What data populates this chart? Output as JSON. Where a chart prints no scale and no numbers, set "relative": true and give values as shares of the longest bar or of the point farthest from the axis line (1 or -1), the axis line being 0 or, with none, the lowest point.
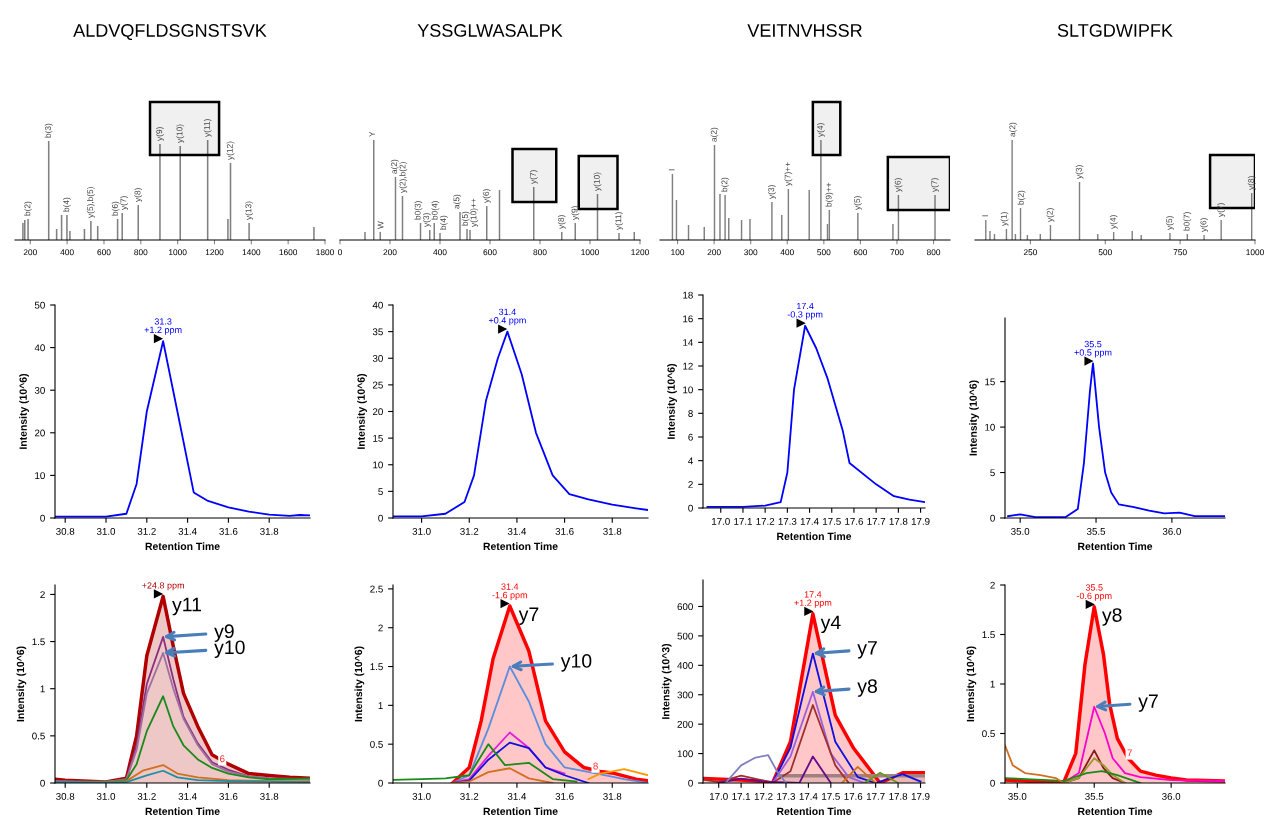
{
  "chart_data": [
    {
      "type": "bar",
      "title": "ALDVQFLDSGNSTSVK",
      "relative": true,
      "color": "#808080",
      "xlim": [
        117,
        1800
      ],
      "xticks": [
        200,
        400,
        600,
        800,
        1000,
        1200,
        1400,
        1600,
        1800
      ],
      "x": [
        160,
        170,
        188,
        300,
        343,
        370,
        399,
        415,
        494,
        529,
        566,
        674,
        699,
        786,
        904,
        1014,
        1163,
        1273,
        1287,
        1388,
        1740
      ],
      "values": [
        0.17,
        0.2,
        0.21,
        0.99,
        0.11,
        0.25,
        0.25,
        0.09,
        0.11,
        0.19,
        0.14,
        0.21,
        0.27,
        0.35,
        0.96,
        0.94,
        1.0,
        0.21,
        0.77,
        0.17,
        0.13
      ],
      "annotations": [
        {
          "text": "b(2)",
          "x": 188,
          "y": 0.21
        },
        {
          "text": "b(3)",
          "x": 300,
          "y": 0.99
        },
        {
          "text": "b(4)",
          "x": 399,
          "y": 0.25
        },
        {
          "text": "y(5),b(5)",
          "x": 529,
          "y": 0.19
        },
        {
          "text": "b(6)",
          "x": 674,
          "y": 0.21
        },
        {
          "text": "y(7)",
          "x": 699,
          "y": 0.27
        },
        {
          "text": "y(8)",
          "x": 786,
          "y": 0.35
        },
        {
          "text": "y(9)",
          "x": 904,
          "y": 0.96
        },
        {
          "text": "y(10)",
          "x": 1014,
          "y": 0.94
        },
        {
          "text": "y(11)",
          "x": 1163,
          "y": 1.0
        },
        {
          "text": "y(12)",
          "x": 1287,
          "y": 0.77
        },
        {
          "text": "y(13)",
          "x": 1388,
          "y": 0.17
        }
      ],
      "bands": [
        {
          "axis": "x",
          "from": 850,
          "to": 1225,
          "color": "#000000"
        }
      ]
    },
    {
      "type": "bar",
      "title": "YSSGLWASALPK",
      "relative": true,
      "color": "#808080",
      "xlim": [
        0,
        1200
      ],
      "xticks": [
        0,
        200,
        400,
        600,
        800,
        1000,
        1200
      ],
      "x": [
        100,
        135,
        161,
        222,
        250,
        322,
        359,
        377,
        400,
        480,
        508,
        520,
        587,
        638,
        775,
        887,
        941,
        1030,
        1116,
        1177
      ],
      "values": [
        0.08,
        1.0,
        0.08,
        0.63,
        0.44,
        0.17,
        0.1,
        0.17,
        0.07,
        0.28,
        0.11,
        0.1,
        0.34,
        0.5,
        0.53,
        0.08,
        0.17,
        0.46,
        0.07,
        0.08
      ],
      "annotations": [
        {
          "text": "Y",
          "x": 135,
          "y": 1.0
        },
        {
          "text": "W",
          "x": 161,
          "y": 0.08
        },
        {
          "text": "a(2)",
          "x": 222,
          "y": 0.63
        },
        {
          "text": "y(2),b(2)",
          "x": 250,
          "y": 0.44
        },
        {
          "text": "b0(3)",
          "x": 322,
          "y": 0.17
        },
        {
          "text": "y(3)",
          "x": 359,
          "y": 0.1
        },
        {
          "text": "b0(4)",
          "x": 377,
          "y": 0.17
        },
        {
          "text": "b(4)",
          "x": 400,
          "y": 0.07
        },
        {
          "text": "a(5)",
          "x": 480,
          "y": 0.28
        },
        {
          "text": "b(5)",
          "x": 508,
          "y": 0.11
        },
        {
          "text": "y(10)++",
          "x": 520,
          "y": 0.1
        },
        {
          "text": "y(6)",
          "x": 587,
          "y": 0.34
        },
        {
          "text": "y(7)",
          "x": 775,
          "y": 0.53
        },
        {
          "text": "y(8)",
          "x": 887,
          "y": 0.08
        },
        {
          "text": "y(9)",
          "x": 941,
          "y": 0.17
        },
        {
          "text": "y(10)",
          "x": 1030,
          "y": 0.46
        },
        {
          "text": "y(11)",
          "x": 1116,
          "y": 0.07
        }
      ],
      "bands": [
        {
          "axis": "x",
          "from": 690,
          "to": 865,
          "color": "#000000"
        },
        {
          "axis": "x",
          "from": 955,
          "to": 1110,
          "color": "#000000"
        }
      ]
    },
    {
      "type": "bar",
      "title": "VEITNVHSSR",
      "relative": true,
      "color": "#808080",
      "xlim": [
        52,
        845
      ],
      "xticks": [
        100,
        200,
        300,
        400,
        500,
        600,
        700,
        800
      ],
      "x": [
        86,
        97,
        130,
        173,
        201,
        216,
        230,
        240,
        275,
        298,
        358,
        385,
        403,
        460,
        492,
        510,
        515,
        593,
        689,
        704,
        804
      ],
      "values": [
        0.66,
        0.4,
        0.15,
        0.13,
        0.95,
        0.46,
        0.45,
        0.22,
        0.2,
        0.21,
        0.38,
        0.25,
        0.51,
        0.5,
        1.0,
        0.16,
        0.3,
        0.27,
        0.16,
        0.45,
        0.45
      ],
      "annotations": [
        {
          "text": "I",
          "x": 86,
          "y": 0.66
        },
        {
          "text": "a(2)",
          "x": 201,
          "y": 0.95
        },
        {
          "text": "b(2)",
          "x": 230,
          "y": 0.45
        },
        {
          "text": "y(3)",
          "x": 358,
          "y": 0.38
        },
        {
          "text": "y(7)++",
          "x": 403,
          "y": 0.51
        },
        {
          "text": "y(4)",
          "x": 492,
          "y": 1.0
        },
        {
          "text": "b(9)++",
          "x": 515,
          "y": 0.3
        },
        {
          "text": "y(5)",
          "x": 593,
          "y": 0.27
        },
        {
          "text": "y(6)",
          "x": 704,
          "y": 0.45
        },
        {
          "text": "y(7)",
          "x": 804,
          "y": 0.45
        }
      ],
      "bands": [
        {
          "axis": "x",
          "from": 470,
          "to": 545,
          "color": "#000000"
        },
        {
          "axis": "x",
          "from": 675,
          "to": 845,
          "color": "#000000"
        }
      ]
    },
    {
      "type": "bar",
      "title": "SLTGDWIPFK",
      "relative": true,
      "color": "#808080",
      "xlim": [
        65,
        1000
      ],
      "xticks": [
        250,
        500,
        750,
        1000
      ],
      "x": [
        101,
        115,
        130,
        170,
        189,
        200,
        217,
        240,
        283,
        317,
        414,
        475,
        528,
        590,
        620,
        716,
        774,
        830,
        887,
        989
      ],
      "values": [
        0.2,
        0.09,
        0.06,
        0.11,
        1.0,
        0.06,
        0.32,
        0.05,
        0.06,
        0.15,
        0.58,
        0.06,
        0.08,
        0.09,
        0.05,
        0.07,
        0.06,
        0.05,
        0.2,
        0.47
      ],
      "annotations": [
        {
          "text": "I",
          "x": 101,
          "y": 0.2
        },
        {
          "text": "y(1)",
          "x": 170,
          "y": 0.11
        },
        {
          "text": "a(2)",
          "x": 189,
          "y": 1.0
        },
        {
          "text": "b(2)",
          "x": 217,
          "y": 0.32
        },
        {
          "text": "y(2)",
          "x": 317,
          "y": 0.15
        },
        {
          "text": "y(3)",
          "x": 414,
          "y": 0.58
        },
        {
          "text": "y(4)",
          "x": 528,
          "y": 0.08
        },
        {
          "text": "y(5)",
          "x": 716,
          "y": 0.07
        },
        {
          "text": "b0(7)",
          "x": 774,
          "y": 0.06
        },
        {
          "text": "y(6)",
          "x": 830,
          "y": 0.05
        },
        {
          "text": "y(7)",
          "x": 887,
          "y": 0.2
        },
        {
          "text": "y(8)",
          "x": 989,
          "y": 0.47
        }
      ],
      "bands": [
        {
          "axis": "x",
          "from": 850,
          "to": 1000,
          "color": "#000000"
        }
      ]
    },
    {
      "type": "line",
      "xlabel": "Retention Time",
      "ylabel": "Intensity (10^6)",
      "xlim": [
        30.75,
        32.0
      ],
      "xticks": [
        30.8,
        {
          "value": 31,
          "label": "31.0"
        },
        31.2,
        31.4,
        31.6,
        31.8
      ],
      "ylim": [
        0,
        50
      ],
      "yticks": [
        0,
        10,
        20,
        30,
        40,
        50
      ],
      "series": [
        {
          "color": "#0000ff",
          "x": [
            30.75,
            30.9,
            31.0,
            31.1,
            31.15,
            31.2,
            31.28,
            31.35,
            31.43,
            31.5,
            31.6,
            31.7,
            31.8,
            31.9,
            31.95,
            32.0
          ],
          "values": [
            0.3,
            0.3,
            0.3,
            1,
            8,
            25,
            41.5,
            25,
            6,
            4,
            2.5,
            1.5,
            0.8,
            0.5,
            0.7,
            0.6
          ]
        }
      ],
      "annotations": [
        {
          "text": "31.3\n+1.2 ppm",
          "x": 31.28,
          "y": 41.5
        }
      ]
    },
    {
      "type": "line",
      "xlabel": "Retention Time",
      "ylabel": "Intensity (10^6)",
      "xlim": [
        30.88,
        31.95
      ],
      "xticks": [
        {
          "value": 31,
          "label": "31.0"
        },
        31.2,
        31.4,
        31.6,
        31.8
      ],
      "ylim": [
        0,
        40
      ],
      "yticks": [
        0,
        5,
        10,
        15,
        20,
        25,
        30,
        35,
        40
      ],
      "series": [
        {
          "color": "#0000ff",
          "x": [
            30.88,
            31.0,
            31.1,
            31.18,
            31.22,
            31.27,
            31.32,
            31.36,
            31.42,
            31.48,
            31.55,
            31.62,
            31.7,
            31.8,
            31.9,
            31.95
          ],
          "values": [
            0.3,
            0.3,
            0.8,
            3,
            8,
            22,
            30,
            35,
            27,
            16,
            8,
            4.5,
            3.5,
            2.5,
            1.8,
            1.5
          ]
        }
      ],
      "annotations": [
        {
          "text": "31.4\n+0.4 ppm",
          "x": 31.36,
          "y": 35
        }
      ]
    },
    {
      "type": "line",
      "xlabel": "Retention Time",
      "ylabel": "Intensity (10^6)",
      "xlim": [
        16.92,
        17.92
      ],
      "xticks": [
        {
          "value": 17,
          "label": "17.0"
        },
        17.1,
        17.2,
        17.3,
        17.4,
        17.5,
        17.6,
        17.7,
        17.8,
        17.9
      ],
      "ylim": [
        0,
        18
      ],
      "yticks": [
        0,
        2,
        4,
        6,
        8,
        10,
        12,
        14,
        16,
        18
      ],
      "series": [
        {
          "color": "#0000ff",
          "x": [
            16.94,
            17.1,
            17.2,
            17.27,
            17.3,
            17.33,
            17.38,
            17.43,
            17.48,
            17.55,
            17.58,
            17.7,
            17.78,
            17.85,
            17.92
          ],
          "values": [
            0.1,
            0.1,
            0.2,
            0.5,
            3,
            10,
            15.4,
            13.5,
            11,
            6.5,
            3.8,
            2,
            1,
            0.7,
            0.5
          ]
        }
      ],
      "annotations": [
        {
          "text": "17.4\n-0.3 ppm",
          "x": 17.38,
          "y": 15.4
        }
      ]
    },
    {
      "type": "line",
      "xlabel": "Retention Time",
      "ylabel": "Intensity (10^6)",
      "xlim": [
        34.9,
        36.35
      ],
      "xticks": [
        {
          "value": 35,
          "label": "35.0"
        },
        35.5,
        {
          "value": 36,
          "label": "36.0"
        }
      ],
      "ylim": [
        0,
        22
      ],
      "yticks": [
        0,
        5,
        10,
        15
      ],
      "series": [
        {
          "color": "#0000ff",
          "x": [
            34.92,
            35.0,
            35.1,
            35.3,
            35.38,
            35.42,
            35.46,
            35.48,
            35.52,
            35.56,
            35.6,
            35.65,
            35.75,
            35.85,
            35.95,
            36.05,
            36.15,
            36.35
          ],
          "values": [
            0.2,
            0.4,
            0.1,
            0.1,
            1,
            6,
            14,
            17,
            10,
            5,
            2.8,
            1.5,
            1.2,
            0.8,
            0.5,
            0.6,
            0.2,
            0.2
          ]
        }
      ],
      "annotations": [
        {
          "text": "35.5\n+0.5 ppm",
          "x": 35.48,
          "y": 17
        }
      ]
    },
    {
      "type": "line",
      "xlabel": "Retention Time",
      "ylabel": "Intensity (10^6)",
      "xlim": [
        30.75,
        32.0
      ],
      "xticks": [
        30.8,
        {
          "value": 31,
          "label": "31.0"
        },
        31.2,
        31.4,
        31.6,
        31.8
      ],
      "ylim": [
        0,
        2.1
      ],
      "yticks": [
        0,
        0.5,
        1,
        1.5,
        2
      ],
      "series": [
        {
          "type": "area",
          "name": "y11",
          "color": "#b00000",
          "x": [
            30.75,
            30.8,
            31.0,
            31.1,
            31.15,
            31.2,
            31.28,
            31.33,
            31.38,
            31.45,
            31.52,
            31.6,
            31.7,
            31.8,
            31.9,
            32.0
          ],
          "values": [
            0.04,
            0.03,
            0.01,
            0.05,
            0.5,
            1.35,
            1.98,
            1.45,
            0.95,
            0.6,
            0.3,
            0.2,
            0.1,
            0.08,
            0.06,
            0.05
          ]
        },
        {
          "name": "y9",
          "color": "#8b2f7f",
          "x": [
            30.75,
            31.0,
            31.1,
            31.15,
            31.2,
            31.28,
            31.33,
            31.38,
            31.45,
            31.52,
            31.6,
            31.7,
            31.8,
            32.0
          ],
          "values": [
            0.02,
            0.01,
            0.04,
            0.4,
            1.05,
            1.55,
            1.1,
            0.7,
            0.42,
            0.22,
            0.14,
            0.07,
            0.05,
            0.04
          ]
        },
        {
          "name": "y10",
          "color": "#a070a0",
          "x": [
            30.75,
            31.0,
            31.1,
            31.15,
            31.2,
            31.28,
            31.33,
            31.38,
            31.45,
            31.52,
            31.6,
            31.7,
            31.8,
            32.0
          ],
          "values": [
            0.02,
            0.01,
            0.04,
            0.35,
            0.95,
            1.38,
            1.0,
            0.68,
            0.4,
            0.2,
            0.12,
            0.07,
            0.05,
            0.04
          ]
        },
        {
          "color": "#1a8a1a",
          "x": [
            30.75,
            31.0,
            31.1,
            31.15,
            31.2,
            31.28,
            31.33,
            31.38,
            31.45,
            31.52,
            31.6,
            31.7,
            31.8,
            32.0
          ],
          "values": [
            0.01,
            0.01,
            0.03,
            0.2,
            0.55,
            0.92,
            0.6,
            0.4,
            0.25,
            0.16,
            0.1,
            0.06,
            0.04,
            0.05
          ]
        },
        {
          "color": "#d07020",
          "x": [
            30.75,
            31.1,
            31.18,
            31.28,
            31.35,
            31.45,
            31.6,
            31.8,
            32.0
          ],
          "values": [
            0.01,
            0.02,
            0.13,
            0.19,
            0.1,
            0.06,
            0.03,
            0.02,
            0.02
          ]
        },
        {
          "color": "#2090a0",
          "x": [
            30.75,
            31.1,
            31.2,
            31.28,
            31.35,
            31.45,
            31.6,
            32.0
          ],
          "values": [
            0.01,
            0.01,
            0.08,
            0.13,
            0.06,
            0.03,
            0.02,
            0.01
          ]
        }
      ],
      "annotations": [
        {
          "text": "+24.8 ppm",
          "x": 31.28,
          "y": 1.98
        },
        {
          "text": "6",
          "x": 31.57,
          "y": 0.2
        }
      ]
    },
    {
      "type": "line",
      "xlabel": "Retention Time",
      "ylabel": "Intensity (10^6)",
      "xlim": [
        30.88,
        31.95
      ],
      "xticks": [
        {
          "value": 31,
          "label": "31.0"
        },
        31.2,
        31.4,
        31.6,
        31.8
      ],
      "ylim": [
        0,
        2.55
      ],
      "yticks": [
        0,
        0.5,
        1,
        1.5,
        2,
        2.5
      ],
      "series": [
        {
          "type": "area",
          "name": "y7",
          "color": "#ff0000",
          "x": [
            31.13,
            31.2,
            31.25,
            31.3,
            31.37,
            31.45,
            31.52,
            31.6,
            31.68,
            31.75,
            31.8,
            31.9,
            31.95
          ],
          "values": [
            0,
            0.2,
            0.8,
            1.6,
            2.28,
            1.7,
            0.8,
            0.4,
            0.2,
            0.15,
            0.13,
            0.05,
            0.03
          ]
        },
        {
          "name": "y10",
          "color": "#5b8ee0",
          "x": [
            31.13,
            31.2,
            31.28,
            31.37,
            31.45,
            31.52,
            31.6,
            31.72,
            31.85,
            31.95
          ],
          "values": [
            0,
            0.1,
            0.7,
            1.5,
            1.05,
            0.5,
            0.2,
            0.13,
            0.05,
            0
          ]
        },
        {
          "color": "#e020e0",
          "x": [
            31.13,
            31.2,
            31.28,
            31.37,
            31.45,
            31.52,
            31.6
          ],
          "values": [
            0,
            0.05,
            0.35,
            0.65,
            0.45,
            0.2,
            0.12
          ]
        },
        {
          "color": "#1010e0",
          "x": [
            31.13,
            31.2,
            31.28,
            31.37,
            31.45,
            31.52,
            31.6,
            31.7
          ],
          "values": [
            0,
            0.03,
            0.3,
            0.52,
            0.45,
            0.2,
            0.1,
            0
          ]
        },
        {
          "color": "#1a8a1a",
          "x": [
            30.88,
            31.0,
            31.1,
            31.2,
            31.28,
            31.35,
            31.45,
            31.55,
            31.65
          ],
          "values": [
            0.04,
            0.05,
            0.06,
            0.1,
            0.5,
            0.23,
            0.26,
            0.05,
            0.02
          ]
        },
        {
          "color": "#d07020",
          "x": [
            31.13,
            31.2,
            31.28,
            31.37,
            31.45,
            31.55
          ],
          "values": [
            0,
            0.02,
            0.14,
            0.19,
            0.06,
            0
          ]
        },
        {
          "color": "#ff9900",
          "x": [
            31.7,
            31.75,
            31.85,
            31.95
          ],
          "values": [
            0.05,
            0.12,
            0.18,
            0.1
          ]
        }
      ],
      "annotations": [
        {
          "text": "31.4\n-1.6 ppm",
          "x": 31.37,
          "y": 2.28
        },
        {
          "text": "8",
          "x": 31.73,
          "y": 0.15
        }
      ]
    },
    {
      "type": "line",
      "xlabel": "Retention Time",
      "ylabel": "Intensity (10^3)",
      "xlim": [
        16.93,
        17.92
      ],
      "xticks": [
        {
          "value": 17,
          "label": "17.0"
        },
        17.1,
        17.2,
        17.3,
        17.4,
        17.5,
        17.6,
        17.7,
        17.8,
        17.9
      ],
      "ylim": [
        0,
        690
      ],
      "yticks": [
        0,
        100,
        200,
        300,
        400,
        500,
        600
      ],
      "series": [
        {
          "type": "area",
          "name": "y4",
          "color": "#ff0000",
          "x": [
            16.93,
            17.1,
            17.2,
            17.24,
            17.32,
            17.42,
            17.52,
            17.6,
            17.72,
            17.82,
            17.92
          ],
          "values": [
            15,
            10,
            5,
            0,
            140,
            575,
            230,
            120,
            0,
            35,
            35
          ]
        },
        {
          "type": "area",
          "color": "#a08080",
          "x": [
            17.27,
            17.92
          ],
          "values": [
            25,
            25
          ]
        },
        {
          "name": "y7",
          "color": "#1010e0",
          "x": [
            17.24,
            17.32,
            17.42,
            17.52,
            17.62,
            17.7,
            17.82,
            17.9
          ],
          "values": [
            0,
            120,
            440,
            140,
            20,
            0,
            30,
            5
          ]
        },
        {
          "name": "y8",
          "color": "#9a60e0",
          "x": [
            17.24,
            17.32,
            17.42,
            17.5,
            17.58,
            17.65
          ],
          "values": [
            0,
            90,
            310,
            100,
            20,
            0
          ]
        },
        {
          "color": "#a03030",
          "x": [
            16.93,
            17.0,
            17.1,
            17.2,
            17.24,
            17.32,
            17.42,
            17.52,
            17.58
          ],
          "values": [
            12,
            3,
            25,
            8,
            0,
            40,
            265,
            60,
            0
          ]
        },
        {
          "color": "#6a0a8a",
          "x": [
            17.0,
            17.1,
            17.2,
            17.36,
            17.42,
            17.5
          ],
          "values": [
            0,
            15,
            5,
            0,
            90,
            0
          ]
        },
        {
          "color": "#8080c0",
          "x": [
            17.03,
            17.1,
            17.16,
            17.22,
            17.26,
            17.3
          ],
          "values": [
            0,
            60,
            85,
            95,
            40,
            0
          ]
        },
        {
          "color": "#d07020",
          "x": [
            17.55,
            17.62,
            17.7
          ],
          "values": [
            0,
            55,
            0
          ]
        },
        {
          "color": "#6a9a20",
          "x": [
            17.65,
            17.72,
            17.8
          ],
          "values": [
            0,
            35,
            0
          ]
        }
      ],
      "annotations": [
        {
          "text": "17.4\n+1.2 ppm",
          "x": 17.42,
          "y": 575
        }
      ]
    },
    {
      "type": "line",
      "xlabel": "Retention Time",
      "ylabel": "Intensity (10^6)",
      "xlim": [
        34.92,
        36.35
      ],
      "xticks": [
        {
          "value": 35,
          "label": "35.0"
        },
        35.5,
        {
          "value": 36,
          "label": "36.0"
        }
      ],
      "ylim": [
        0,
        2
      ],
      "yticks": [
        0,
        0.5,
        1,
        1.5,
        2
      ],
      "series": [
        {
          "type": "area",
          "name": "y8",
          "color": "#ff0000",
          "x": [
            34.92,
            35.3,
            35.38,
            35.44,
            35.5,
            35.56,
            35.6,
            35.65,
            35.72,
            35.8,
            35.9,
            36.0,
            36.1,
            36.35
          ],
          "values": [
            0.03,
            0,
            0.3,
            1.2,
            1.78,
            1.3,
            0.8,
            0.45,
            0.25,
            0.12,
            0.08,
            0.05,
            0.03,
            0.02
          ]
        },
        {
          "name": "y7",
          "color": "#ff00cc",
          "x": [
            35.3,
            35.4,
            35.5,
            35.57,
            35.62,
            35.7,
            35.8,
            36.0,
            36.35
          ],
          "values": [
            0,
            0.1,
            0.77,
            0.5,
            0.25,
            0.1,
            0.06,
            0.03,
            0.02
          ]
        },
        {
          "color": "#8b1a1a",
          "x": [
            35.3,
            35.4,
            35.5,
            35.56,
            35.62,
            35.7
          ],
          "values": [
            0,
            0.05,
            0.33,
            0.15,
            0.05,
            0
          ]
        },
        {
          "color": "#9a9a30",
          "x": [
            35.3,
            35.4,
            35.5,
            35.56,
            35.62,
            35.7
          ],
          "values": [
            0,
            0.05,
            0.25,
            0.18,
            0.08,
            0
          ]
        },
        {
          "color": "#1a8a1a",
          "x": [
            34.92,
            35.3,
            35.45,
            35.55,
            35.65,
            35.8
          ],
          "values": [
            0.05,
            0.02,
            0.1,
            0.12,
            0.08,
            0
          ]
        },
        {
          "color": "#d07020",
          "x": [
            34.92,
            34.97,
            35.05,
            35.15,
            35.25,
            35.3
          ],
          "values": [
            0.38,
            0.18,
            0.1,
            0.08,
            0.05,
            0
          ]
        }
      ],
      "annotations": [
        {
          "text": "35.5\n-0.6 ppm",
          "x": 35.5,
          "y": 1.78
        },
        {
          "text": "7",
          "x": 35.73,
          "y": 0.25
        }
      ]
    }
  ]
}
